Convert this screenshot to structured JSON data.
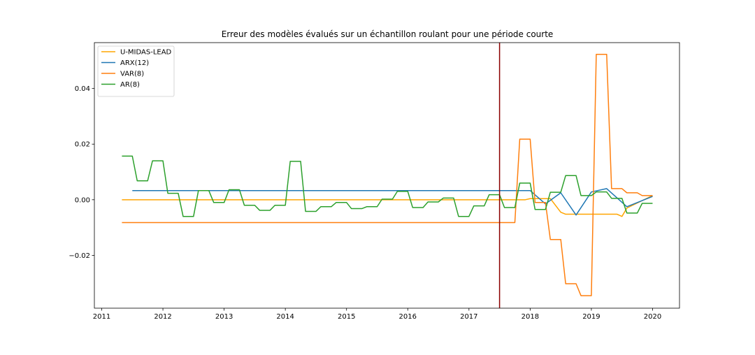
{
  "chart_data": {
    "type": "line",
    "title": "Erreur des modèles évalués sur un échantillon roulant pour une période courte",
    "xlabel": "",
    "ylabel": "",
    "xlim": [
      2010.88,
      2020.44
    ],
    "ylim": [
      -0.039,
      0.0565
    ],
    "x_ticks": [
      2011,
      2012,
      2013,
      2014,
      2015,
      2016,
      2017,
      2018,
      2019,
      2020
    ],
    "y_ticks": [
      -0.02,
      0.0,
      0.02,
      0.04
    ],
    "y_tick_labels": [
      "−0.02",
      "0.00",
      "0.02",
      "0.04"
    ],
    "grid": false,
    "legend_position": "top-left",
    "vertical_line": {
      "x": 2017.5,
      "color": "#8b0000"
    },
    "series": [
      {
        "name": "U-MIDAS-LEAD",
        "color": "#ffa500",
        "points": [
          [
            2011.33,
            0.0
          ],
          [
            2017.92,
            0.0
          ],
          [
            2018.0,
            0.0004
          ],
          [
            2018.33,
            0.0004
          ],
          [
            2018.5,
            -0.0045
          ],
          [
            2018.58,
            -0.0052
          ],
          [
            2019.0,
            -0.0052
          ],
          [
            2019.42,
            -0.0052
          ],
          [
            2019.5,
            -0.006
          ],
          [
            2019.58,
            -0.003
          ],
          [
            2020.0,
            0.0015
          ]
        ]
      },
      {
        "name": "ARX(12)",
        "color": "#1f77b4",
        "points": [
          [
            2011.5,
            0.0033
          ],
          [
            2018.0,
            0.0033
          ],
          [
            2018.25,
            -0.0015
          ],
          [
            2018.5,
            0.0025
          ],
          [
            2018.75,
            -0.0055
          ],
          [
            2019.0,
            0.0028
          ],
          [
            2019.25,
            0.004
          ],
          [
            2019.58,
            -0.0025
          ],
          [
            2020.0,
            0.0012
          ]
        ]
      },
      {
        "name": "VAR(8)",
        "color": "#ff7f0e",
        "points": [
          [
            2011.33,
            -0.0082
          ],
          [
            2017.75,
            -0.0082
          ],
          [
            2017.83,
            0.0218
          ],
          [
            2018.0,
            0.0218
          ],
          [
            2018.08,
            -0.001
          ],
          [
            2018.25,
            -0.001
          ],
          [
            2018.33,
            -0.0143
          ],
          [
            2018.5,
            -0.0143
          ],
          [
            2018.58,
            -0.0302
          ],
          [
            2018.75,
            -0.0302
          ],
          [
            2018.83,
            -0.0345
          ],
          [
            2019.0,
            -0.0345
          ],
          [
            2019.08,
            0.0523
          ],
          [
            2019.25,
            0.0523
          ],
          [
            2019.33,
            0.004
          ],
          [
            2019.5,
            0.004
          ],
          [
            2019.58,
            0.0025
          ],
          [
            2019.75,
            0.0025
          ],
          [
            2019.83,
            0.0015
          ],
          [
            2020.0,
            0.0015
          ]
        ]
      },
      {
        "name": "AR(8)",
        "color": "#2ca02c",
        "points": [
          [
            2011.33,
            0.0157
          ],
          [
            2011.5,
            0.0157
          ],
          [
            2011.58,
            0.0068
          ],
          [
            2011.75,
            0.0068
          ],
          [
            2011.83,
            0.014
          ],
          [
            2012.0,
            0.014
          ],
          [
            2012.08,
            0.0023
          ],
          [
            2012.25,
            0.0023
          ],
          [
            2012.33,
            -0.006
          ],
          [
            2012.5,
            -0.006
          ],
          [
            2012.58,
            0.0033
          ],
          [
            2012.75,
            0.0033
          ],
          [
            2012.83,
            -0.001
          ],
          [
            2013.0,
            -0.001
          ],
          [
            2013.08,
            0.0036
          ],
          [
            2013.25,
            0.0036
          ],
          [
            2013.33,
            -0.002
          ],
          [
            2013.5,
            -0.002
          ],
          [
            2013.58,
            -0.0038
          ],
          [
            2013.75,
            -0.0038
          ],
          [
            2013.83,
            -0.002
          ],
          [
            2014.0,
            -0.002
          ],
          [
            2014.08,
            0.0138
          ],
          [
            2014.25,
            0.0138
          ],
          [
            2014.33,
            -0.0042
          ],
          [
            2014.5,
            -0.0042
          ],
          [
            2014.58,
            -0.0025
          ],
          [
            2014.75,
            -0.0025
          ],
          [
            2014.83,
            -0.001
          ],
          [
            2015.0,
            -0.001
          ],
          [
            2015.08,
            -0.0032
          ],
          [
            2015.25,
            -0.0032
          ],
          [
            2015.33,
            -0.0025
          ],
          [
            2015.5,
            -0.0025
          ],
          [
            2015.58,
            0.0002
          ],
          [
            2015.75,
            0.0002
          ],
          [
            2015.83,
            0.003
          ],
          [
            2016.0,
            0.003
          ],
          [
            2016.08,
            -0.0028
          ],
          [
            2016.25,
            -0.0028
          ],
          [
            2016.33,
            -0.0008
          ],
          [
            2016.5,
            -0.0008
          ],
          [
            2016.58,
            0.0006
          ],
          [
            2016.75,
            0.0006
          ],
          [
            2016.83,
            -0.006
          ],
          [
            2017.0,
            -0.006
          ],
          [
            2017.08,
            -0.0022
          ],
          [
            2017.25,
            -0.0022
          ],
          [
            2017.33,
            0.0018
          ],
          [
            2017.5,
            0.0018
          ],
          [
            2017.58,
            -0.0028
          ],
          [
            2017.75,
            -0.0028
          ],
          [
            2017.83,
            0.006
          ],
          [
            2018.0,
            0.006
          ],
          [
            2018.08,
            -0.0035
          ],
          [
            2018.25,
            -0.0035
          ],
          [
            2018.33,
            0.0027
          ],
          [
            2018.5,
            0.0027
          ],
          [
            2018.58,
            0.0087
          ],
          [
            2018.75,
            0.0087
          ],
          [
            2018.83,
            0.0015
          ],
          [
            2019.0,
            0.0015
          ],
          [
            2019.08,
            0.0028
          ],
          [
            2019.25,
            0.0028
          ],
          [
            2019.33,
            0.0005
          ],
          [
            2019.5,
            0.0005
          ],
          [
            2019.58,
            -0.0048
          ],
          [
            2019.75,
            -0.0048
          ],
          [
            2019.83,
            -0.0013
          ],
          [
            2020.0,
            -0.0013
          ]
        ]
      }
    ]
  }
}
